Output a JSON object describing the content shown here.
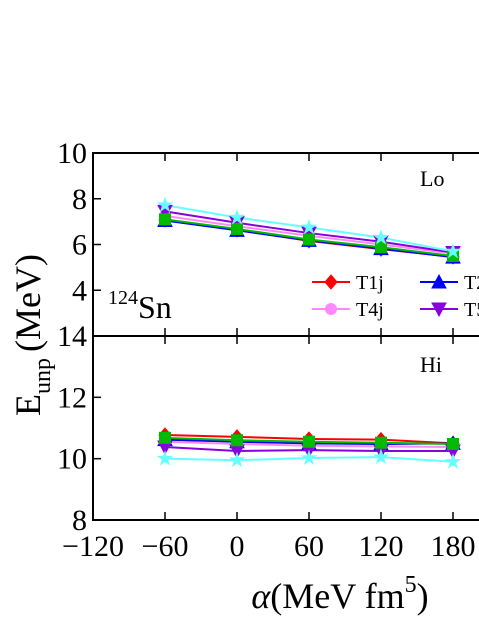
{
  "chart_data": [
    {
      "type": "line",
      "x": [
        -60,
        0,
        60,
        120,
        180
      ],
      "xlim": [
        -120,
        240
      ],
      "xticks": [
        -120,
        -60,
        0,
        60,
        120,
        180
      ],
      "ylim": [
        2,
        10
      ],
      "yticks": [
        4,
        6,
        8,
        10
      ],
      "ylabel": {
        "main": "E",
        "sub": "unp",
        "unit": "(MeV)"
      },
      "annotation": {
        "sup": "124",
        "text": "Sn"
      },
      "panel_label": "Lo",
      "series": [
        {
          "name": "T1j",
          "color": "#ff0000",
          "marker": "diamond",
          "values": [
            7.07,
            6.64,
            6.16,
            5.8,
            5.46
          ]
        },
        {
          "name": "T2",
          "color": "#0000ff",
          "marker": "triangle",
          "values": [
            7.05,
            6.62,
            6.18,
            5.82,
            5.45
          ]
        },
        {
          "name": "T4j",
          "color": "#ff88ff",
          "marker": "circle",
          "values": [
            7.25,
            6.8,
            6.38,
            6.0,
            5.6
          ]
        },
        {
          "name": "T5",
          "color": "#8800dd",
          "marker": "down-triangle",
          "values": [
            7.45,
            6.95,
            6.5,
            6.12,
            5.65
          ]
        },
        {
          "color": "#00bb00",
          "marker": "square",
          "values": [
            7.1,
            6.68,
            6.22,
            5.88,
            5.5
          ]
        },
        {
          "color": "#66ffff",
          "marker": "star",
          "values": [
            7.72,
            7.18,
            6.75,
            6.3,
            5.7
          ]
        }
      ]
    },
    {
      "type": "line",
      "x": [
        -60,
        0,
        60,
        120,
        180
      ],
      "xlim": [
        -120,
        240
      ],
      "xticks": [
        {
          "value": -120,
          "label": "−120"
        },
        {
          "value": -60,
          "label": "−60"
        },
        0,
        60,
        120,
        180
      ],
      "ylim": [
        8,
        14
      ],
      "yticks": [
        8,
        10,
        12,
        14
      ],
      "xlabel": {
        "symbol": "α",
        "unit": "(MeV fm",
        "sup": "5",
        "close": ")"
      },
      "panel_label": "Hi",
      "series": [
        {
          "color": "#ff0000",
          "marker": "diamond",
          "values": [
            10.77,
            10.71,
            10.64,
            10.62,
            10.5
          ]
        },
        {
          "color": "#0000ff",
          "marker": "triangle",
          "values": [
            10.62,
            10.55,
            10.5,
            10.48,
            10.5
          ]
        },
        {
          "color": "#ff88ff",
          "marker": "circle",
          "values": [
            10.55,
            10.48,
            10.42,
            10.4,
            10.38
          ]
        },
        {
          "color": "#8800dd",
          "marker": "down-triangle",
          "values": [
            10.38,
            10.25,
            10.28,
            10.25,
            10.25
          ]
        },
        {
          "color": "#00bb00",
          "marker": "square",
          "values": [
            10.68,
            10.6,
            10.55,
            10.52,
            10.48
          ]
        },
        {
          "color": "#66ffff",
          "marker": "star",
          "values": [
            10.0,
            9.95,
            10.02,
            10.05,
            9.9
          ]
        }
      ]
    }
  ]
}
